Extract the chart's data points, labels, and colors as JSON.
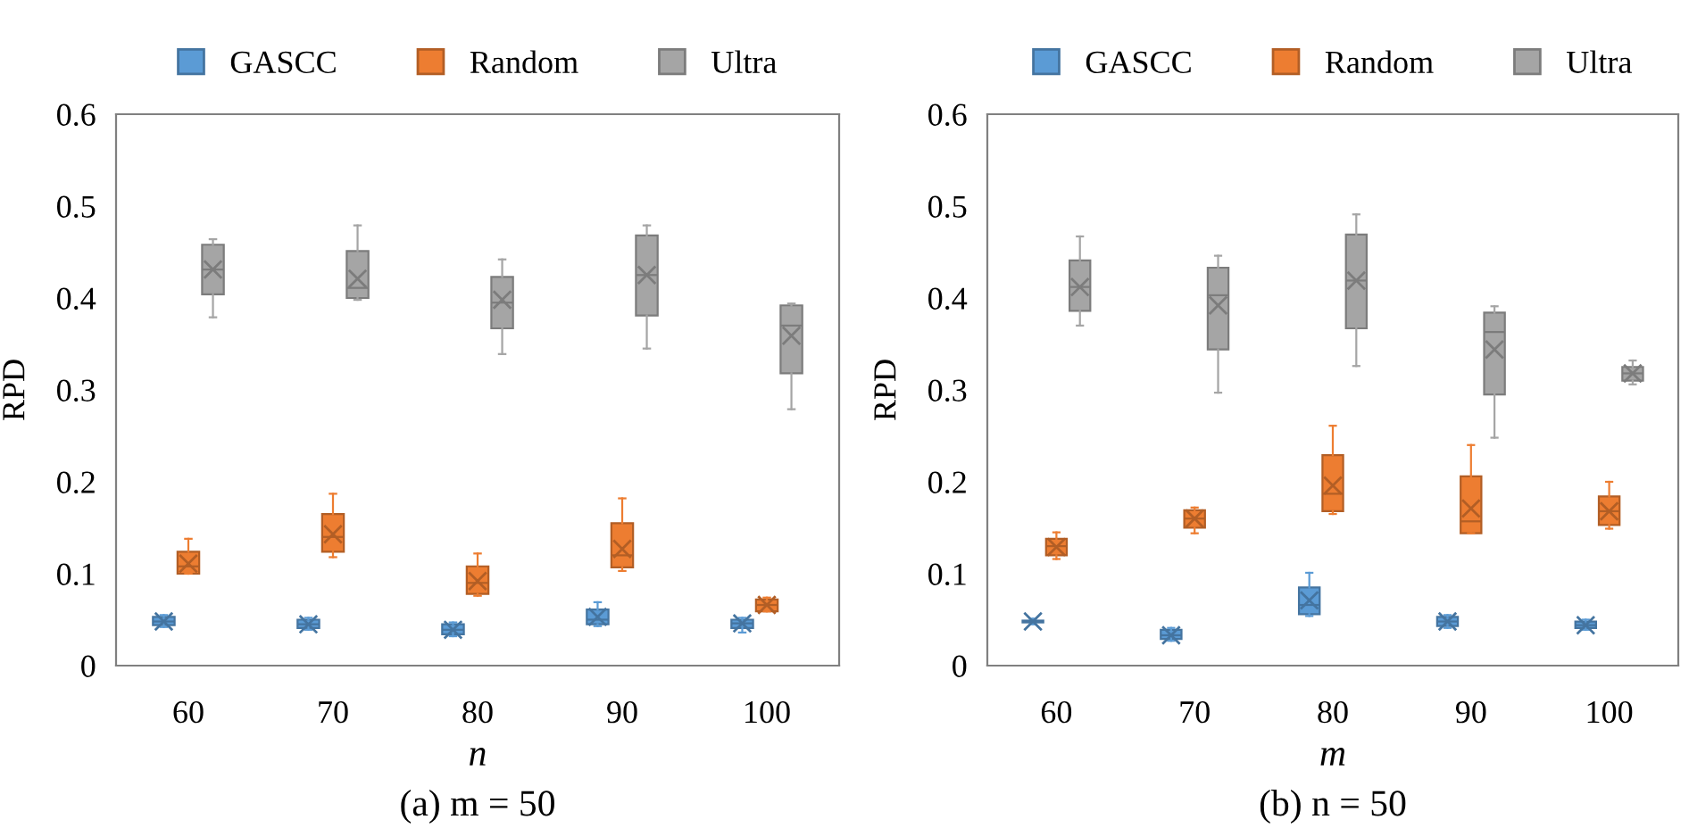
{
  "chart_data": [
    {
      "type": "box",
      "xlabel": "n",
      "ylabel": "RPD",
      "categories": [
        "60",
        "70",
        "80",
        "90",
        "100"
      ],
      "ylim": [
        0,
        0.6
      ],
      "yticks": [
        0,
        0.1,
        0.2,
        0.3,
        0.4,
        0.5,
        0.6
      ],
      "legend": "top",
      "grid": false,
      "marker": "cross",
      "annotations": [
        "(a) m = 50"
      ],
      "series": [
        {
          "name": "GASCC",
          "color": "#5b9bd5",
          "boxes": [
            {
              "low": 0.042,
              "q1": 0.044,
              "median": 0.048,
              "q3": 0.053,
              "high": 0.055,
              "mean": 0.048
            },
            {
              "low": 0.039,
              "q1": 0.041,
              "median": 0.045,
              "q3": 0.05,
              "high": 0.052,
              "mean": 0.045
            },
            {
              "low": 0.032,
              "q1": 0.034,
              "median": 0.039,
              "q3": 0.045,
              "high": 0.047,
              "mean": 0.039
            },
            {
              "low": 0.043,
              "q1": 0.045,
              "median": 0.05,
              "q3": 0.061,
              "high": 0.069,
              "mean": 0.053
            },
            {
              "low": 0.036,
              "q1": 0.041,
              "median": 0.046,
              "q3": 0.05,
              "high": 0.052,
              "mean": 0.046
            }
          ]
        },
        {
          "name": "Random",
          "color": "#ed7d31",
          "boxes": [
            {
              "low": 0.1,
              "q1": 0.1,
              "median": 0.108,
              "q3": 0.124,
              "high": 0.138,
              "mean": 0.111
            },
            {
              "low": 0.118,
              "q1": 0.124,
              "median": 0.14,
              "q3": 0.165,
              "high": 0.187,
              "mean": 0.143
            },
            {
              "low": 0.076,
              "q1": 0.078,
              "median": 0.09,
              "q3": 0.108,
              "high": 0.122,
              "mean": 0.092
            },
            {
              "low": 0.103,
              "q1": 0.107,
              "median": 0.12,
              "q3": 0.155,
              "high": 0.182,
              "mean": 0.127
            },
            {
              "low": 0.059,
              "q1": 0.059,
              "median": 0.066,
              "q3": 0.072,
              "high": 0.074,
              "mean": 0.066
            }
          ]
        },
        {
          "name": "Ultra",
          "color": "#a5a5a5",
          "boxes": [
            {
              "low": 0.379,
              "q1": 0.404,
              "median": 0.431,
              "q3": 0.458,
              "high": 0.464,
              "mean": 0.431
            },
            {
              "low": 0.398,
              "q1": 0.4,
              "median": 0.411,
              "q3": 0.451,
              "high": 0.479,
              "mean": 0.421
            },
            {
              "low": 0.339,
              "q1": 0.367,
              "median": 0.395,
              "q3": 0.423,
              "high": 0.442,
              "mean": 0.398
            },
            {
              "low": 0.345,
              "q1": 0.381,
              "median": 0.425,
              "q3": 0.468,
              "high": 0.479,
              "mean": 0.425
            },
            {
              "low": 0.279,
              "q1": 0.318,
              "median": 0.37,
              "q3": 0.392,
              "high": 0.394,
              "mean": 0.359
            }
          ]
        }
      ]
    },
    {
      "type": "box",
      "xlabel": "m",
      "ylabel": "RPD",
      "categories": [
        "60",
        "70",
        "80",
        "90",
        "100"
      ],
      "ylim": [
        0,
        0.6
      ],
      "yticks": [
        0,
        0.1,
        0.2,
        0.3,
        0.4,
        0.5,
        0.6
      ],
      "legend": "top",
      "grid": false,
      "marker": "cross",
      "annotations": [
        "(b) n = 50"
      ],
      "series": [
        {
          "name": "GASCC",
          "color": "#5b9bd5",
          "boxes": [
            {
              "low": 0.045,
              "q1": 0.047,
              "median": 0.048,
              "q3": 0.049,
              "high": 0.051,
              "mean": 0.048
            },
            {
              "low": 0.027,
              "q1": 0.029,
              "median": 0.033,
              "q3": 0.039,
              "high": 0.041,
              "mean": 0.033
            },
            {
              "low": 0.054,
              "q1": 0.056,
              "median": 0.066,
              "q3": 0.085,
              "high": 0.101,
              "mean": 0.071
            },
            {
              "low": 0.041,
              "q1": 0.043,
              "median": 0.048,
              "q3": 0.053,
              "high": 0.055,
              "mean": 0.048
            },
            {
              "low": 0.039,
              "q1": 0.041,
              "median": 0.044,
              "q3": 0.048,
              "high": 0.05,
              "mean": 0.044
            }
          ]
        },
        {
          "name": "Random",
          "color": "#ed7d31",
          "boxes": [
            {
              "low": 0.116,
              "q1": 0.12,
              "median": 0.13,
              "q3": 0.138,
              "high": 0.145,
              "mean": 0.129
            },
            {
              "low": 0.144,
              "q1": 0.15,
              "median": 0.16,
              "q3": 0.169,
              "high": 0.172,
              "mean": 0.16
            },
            {
              "low": 0.165,
              "q1": 0.168,
              "median": 0.187,
              "q3": 0.229,
              "high": 0.261,
              "mean": 0.196
            },
            {
              "low": 0.144,
              "q1": 0.144,
              "median": 0.157,
              "q3": 0.206,
              "high": 0.24,
              "mean": 0.171
            },
            {
              "low": 0.149,
              "q1": 0.153,
              "median": 0.168,
              "q3": 0.184,
              "high": 0.2,
              "mean": 0.168
            }
          ]
        },
        {
          "name": "Ultra",
          "color": "#a5a5a5",
          "boxes": [
            {
              "low": 0.37,
              "q1": 0.386,
              "median": 0.412,
              "q3": 0.441,
              "high": 0.467,
              "mean": 0.412
            },
            {
              "low": 0.297,
              "q1": 0.344,
              "median": 0.403,
              "q3": 0.433,
              "high": 0.446,
              "mean": 0.392
            },
            {
              "low": 0.326,
              "q1": 0.367,
              "median": 0.419,
              "q3": 0.469,
              "high": 0.491,
              "mean": 0.419
            },
            {
              "low": 0.248,
              "q1": 0.295,
              "median": 0.363,
              "q3": 0.384,
              "high": 0.391,
              "mean": 0.344
            },
            {
              "low": 0.306,
              "q1": 0.31,
              "median": 0.318,
              "q3": 0.325,
              "high": 0.332,
              "mean": 0.318
            }
          ]
        }
      ]
    }
  ]
}
